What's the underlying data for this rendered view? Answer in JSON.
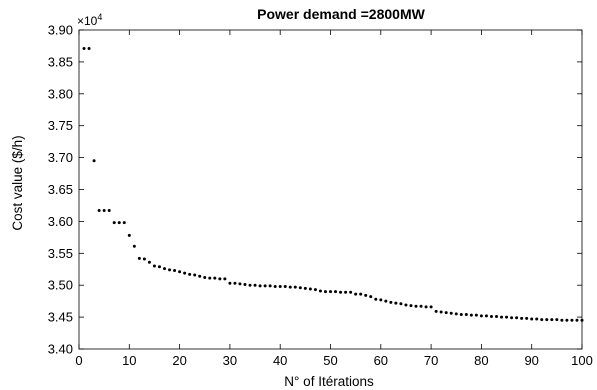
{
  "chart_data": {
    "type": "scatter",
    "title": "Power demand =2800MW",
    "xlabel": "N° of Itérations",
    "ylabel": "Cost value ($/h)",
    "y_exponent_base": "×10",
    "y_exponent_power": "4",
    "xlim": [
      0,
      100
    ],
    "ylim": [
      3.4,
      3.9
    ],
    "grid": false,
    "x_ticks": [
      0,
      10,
      20,
      30,
      40,
      50,
      60,
      70,
      80,
      90,
      100
    ],
    "x_tick_labels": [
      "0",
      "10",
      "20",
      "30",
      "40",
      "50",
      "60",
      "70",
      "80",
      "90",
      "100"
    ],
    "y_ticks": [
      3.4,
      3.45,
      3.5,
      3.55,
      3.6,
      3.65,
      3.7,
      3.75,
      3.8,
      3.85,
      3.9
    ],
    "y_tick_labels": [
      "3.40",
      "3.45",
      "3.50",
      "3.55",
      "3.60",
      "3.65",
      "3.70",
      "3.75",
      "3.80",
      "3.85",
      "3.90"
    ],
    "marker_color": "#000000",
    "x": [
      1,
      2,
      3,
      4,
      5,
      6,
      7,
      8,
      9,
      10,
      11,
      12,
      13,
      14,
      15,
      16,
      17,
      18,
      19,
      20,
      21,
      22,
      23,
      24,
      25,
      26,
      27,
      28,
      29,
      30,
      31,
      32,
      33,
      34,
      35,
      36,
      37,
      38,
      39,
      40,
      41,
      42,
      43,
      44,
      45,
      46,
      47,
      48,
      49,
      50,
      51,
      52,
      53,
      54,
      55,
      56,
      57,
      58,
      59,
      60,
      61,
      62,
      63,
      64,
      65,
      66,
      67,
      68,
      69,
      70,
      71,
      72,
      73,
      74,
      75,
      76,
      77,
      78,
      79,
      80,
      81,
      82,
      83,
      84,
      85,
      86,
      87,
      88,
      89,
      90,
      91,
      92,
      93,
      94,
      95,
      96,
      97,
      98,
      99,
      100
    ],
    "y": [
      3.871,
      3.871,
      3.695,
      3.617,
      3.617,
      3.617,
      3.598,
      3.598,
      3.598,
      3.578,
      3.561,
      3.542,
      3.541,
      3.536,
      3.53,
      3.529,
      3.526,
      3.524,
      3.523,
      3.521,
      3.519,
      3.517,
      3.516,
      3.514,
      3.512,
      3.511,
      3.511,
      3.51,
      3.51,
      3.503,
      3.503,
      3.502,
      3.501,
      3.5,
      3.5,
      3.499,
      3.499,
      3.499,
      3.498,
      3.498,
      3.498,
      3.497,
      3.497,
      3.496,
      3.495,
      3.494,
      3.493,
      3.491,
      3.49,
      3.49,
      3.49,
      3.489,
      3.489,
      3.489,
      3.486,
      3.486,
      3.484,
      3.482,
      3.478,
      3.477,
      3.475,
      3.473,
      3.472,
      3.471,
      3.469,
      3.468,
      3.467,
      3.467,
      3.466,
      3.466,
      3.459,
      3.458,
      3.457,
      3.456,
      3.455,
      3.454,
      3.454,
      3.453,
      3.453,
      3.452,
      3.452,
      3.451,
      3.451,
      3.45,
      3.45,
      3.449,
      3.449,
      3.448,
      3.448,
      3.447,
      3.447,
      3.446,
      3.446,
      3.446,
      3.446,
      3.445,
      3.445,
      3.445,
      3.445,
      3.445
    ]
  }
}
